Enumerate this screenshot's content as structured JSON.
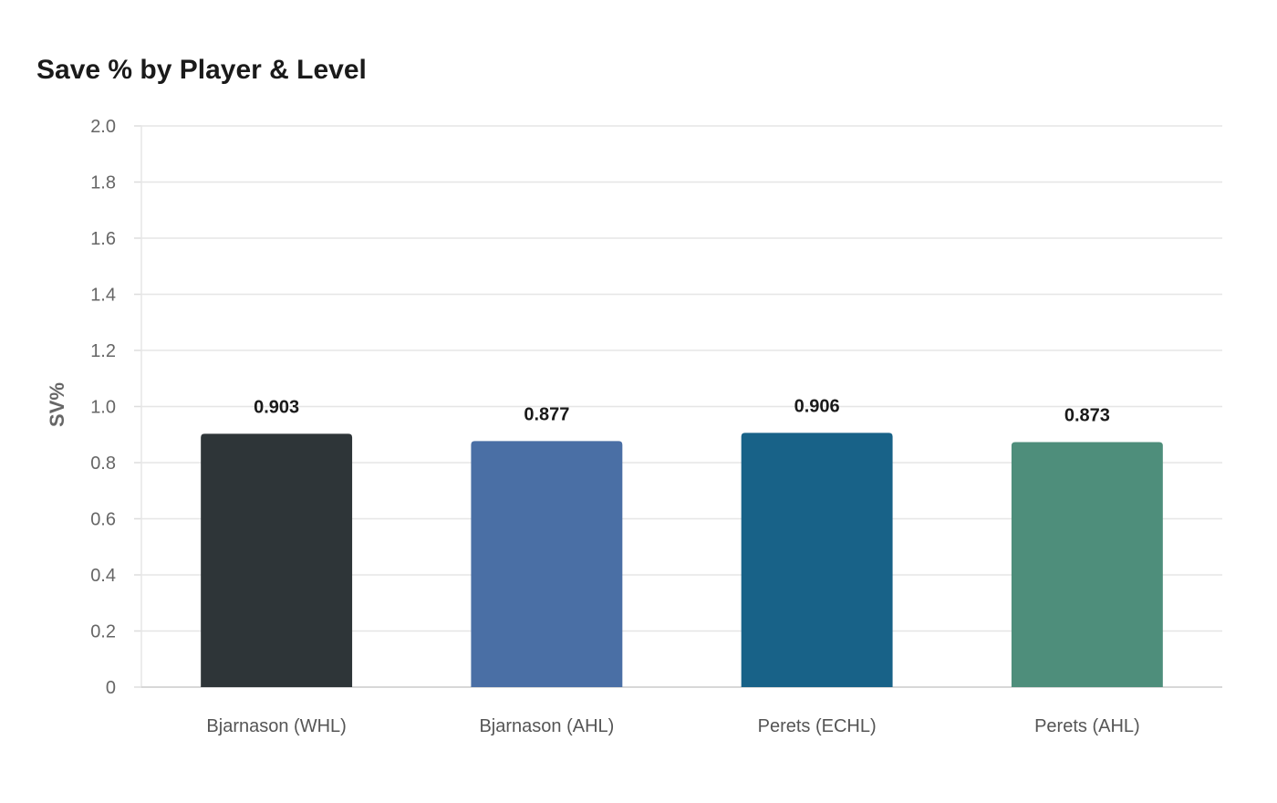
{
  "chart_data": {
    "type": "bar",
    "title": "Save % by Player & Level",
    "xlabel": "",
    "ylabel": "SV%",
    "ylim": [
      0,
      2.0
    ],
    "yticks": [
      "0",
      "0.2",
      "0.4",
      "0.6",
      "0.8",
      "1.0",
      "1.2",
      "1.4",
      "1.6",
      "1.8",
      "2.0"
    ],
    "categories": [
      "Bjarnason (WHL)",
      "Bjarnason (AHL)",
      "Perets (ECHL)",
      "Perets (AHL)"
    ],
    "values": [
      0.903,
      0.877,
      0.906,
      0.873
    ],
    "value_labels": [
      "0.903",
      "0.877",
      "0.906",
      "0.873"
    ],
    "colors": [
      "#2e3538",
      "#4a6fa5",
      "#186288",
      "#4e8e7b"
    ],
    "grid": true,
    "legend": "none"
  }
}
